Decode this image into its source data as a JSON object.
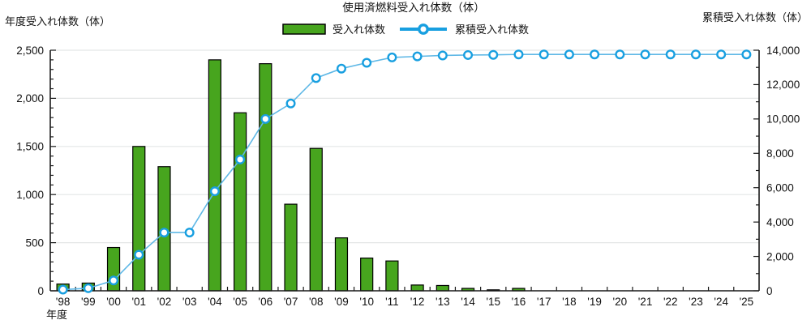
{
  "title": "使用済燃料受入れ体数（体）",
  "legend": {
    "bars_label": "受入れ体数",
    "line_label": "累積受入れ体数"
  },
  "left_axis_title": "年度受入れ体数（体）",
  "right_axis_title": "累積受入れ体数（体）",
  "x_axis_title": "年度",
  "colors": {
    "bar": "#47a51e",
    "bar_border": "#000000",
    "line": "#5fb8e6",
    "marker_stroke": "#189fe0",
    "marker_fill": "#ffffff",
    "grid": "#e4e6e6",
    "axis": "#1a1a1a",
    "text": "#111111"
  },
  "chart_data": {
    "type": "bar",
    "subtype": "bar-line-combo",
    "title": "使用済燃料受入れ体数（体）",
    "xlabel": "年度",
    "grid": "horizontal gridlines at left-axis major ticks",
    "legend_position": "top-center",
    "categories": [
      "'98",
      "'99",
      "'00",
      "'01",
      "'02",
      "'03",
      "'04",
      "'05",
      "'06",
      "'07",
      "'08",
      "'09",
      "'10",
      "'11",
      "'12",
      "'13",
      "'14",
      "'15",
      "'16",
      "'17",
      "'18",
      "'19",
      "'20",
      "'21",
      "'22",
      "'23",
      "'24",
      "'25"
    ],
    "series": [
      {
        "name": "受入れ体数",
        "type": "bar",
        "axis": "left",
        "values": [
          70,
          80,
          450,
          1500,
          1290,
          0,
          2400,
          1850,
          2360,
          900,
          1480,
          550,
          340,
          310,
          60,
          55,
          25,
          10,
          25,
          0,
          0,
          0,
          0,
          0,
          0,
          0,
          0,
          0
        ]
      },
      {
        "name": "累積受入れ体数",
        "type": "line",
        "axis": "right",
        "values": [
          70,
          150,
          600,
          2100,
          3390,
          3390,
          5790,
          7640,
          10000,
          10900,
          12380,
          12930,
          13270,
          13580,
          13640,
          13695,
          13720,
          13730,
          13755,
          13755,
          13755,
          13755,
          13755,
          13755,
          13755,
          13755,
          13755,
          13755
        ]
      }
    ],
    "left_axis": {
      "label": "年度受入れ体数（体）",
      "min": 0,
      "max": 2500,
      "major_tick_step": 500,
      "minor_tick_step": 100,
      "tick_labels": [
        "0",
        "500",
        "1,000",
        "1,500",
        "2,000",
        "2,500"
      ]
    },
    "right_axis": {
      "label": "累積受入れ体数（体）",
      "min": 0,
      "max": 14000,
      "major_tick_step": 2000,
      "minor_tick_step": 1000,
      "tick_labels": [
        "0",
        "2,000",
        "4,000",
        "6,000",
        "8,000",
        "10,000",
        "12,000",
        "14,000"
      ]
    }
  }
}
